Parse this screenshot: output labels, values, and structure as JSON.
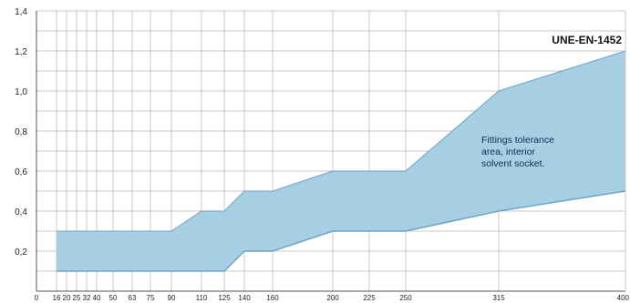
{
  "chart_data": {
    "type": "area",
    "title": "",
    "xlabel": "",
    "ylabel": "",
    "standard_label": "UNE-EN-1452",
    "annotation_lines": [
      "Fittings tolerance",
      "area, interior",
      "solvent socket."
    ],
    "x_tick_labels": [
      "0",
      "16",
      "20",
      "25",
      "32",
      "40",
      "50",
      "63",
      "75",
      "90",
      "110",
      "125",
      "140",
      "160",
      "200",
      "225",
      "250",
      "315",
      "400"
    ],
    "y_tick_labels": [
      "0,2",
      "0,4",
      "0,6",
      "0,8",
      "1,0",
      "1,2",
      "1,4"
    ],
    "y_ticks": [
      0.2,
      0.4,
      0.6,
      0.8,
      1.0,
      1.2,
      1.4
    ],
    "ylim": [
      0,
      1.4
    ],
    "grid": true,
    "band": {
      "upper": [
        {
          "x": "16",
          "y": 0.3
        },
        {
          "x": "90",
          "y": 0.3
        },
        {
          "x": "110",
          "y": 0.4
        },
        {
          "x": "125",
          "y": 0.4
        },
        {
          "x": "140",
          "y": 0.5
        },
        {
          "x": "160",
          "y": 0.5
        },
        {
          "x": "200",
          "y": 0.6
        },
        {
          "x": "250",
          "y": 0.6
        },
        {
          "x": "315",
          "y": 1.0
        },
        {
          "x": "400",
          "y": 1.2
        }
      ],
      "lower": [
        {
          "x": "16",
          "y": 0.1
        },
        {
          "x": "125",
          "y": 0.1
        },
        {
          "x": "140",
          "y": 0.2
        },
        {
          "x": "160",
          "y": 0.2
        },
        {
          "x": "200",
          "y": 0.3
        },
        {
          "x": "250",
          "y": 0.3
        },
        {
          "x": "315",
          "y": 0.4
        },
        {
          "x": "400",
          "y": 0.5
        }
      ]
    },
    "colors": {
      "band_fill": "#a6cfe4",
      "band_edge": "#6fa4c4",
      "grid": "#c8c8c8",
      "axis": "#555555"
    }
  }
}
